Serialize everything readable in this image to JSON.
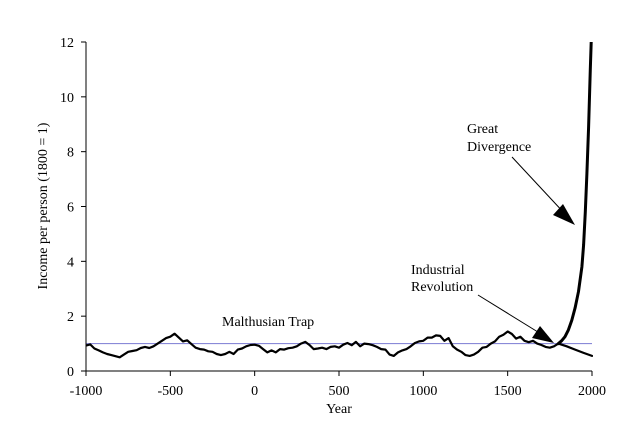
{
  "chart_data": {
    "type": "line",
    "title": "",
    "xlabel": "Year",
    "ylabel": "Income per person (1800 = 1)",
    "xlim": [
      -1000,
      2000
    ],
    "ylim": [
      0,
      12
    ],
    "x_ticks": [
      "-1000",
      "-500",
      "0",
      "500",
      "1000",
      "1500",
      "2000"
    ],
    "y_ticks": [
      "0",
      "2",
      "4",
      "6",
      "8",
      "10",
      "12"
    ],
    "grid": false,
    "legend": "none",
    "reference_line": {
      "y": 1,
      "color": "#8a8ad8"
    },
    "series": [
      {
        "color": "#000000",
        "x": [
          -1000,
          -975,
          -950,
          -925,
          -900,
          -875,
          -850,
          -825,
          -800,
          -775,
          -750,
          -725,
          -700,
          -675,
          -650,
          -625,
          -600,
          -575,
          -550,
          -525,
          -500,
          -475,
          -450,
          -425,
          -400,
          -375,
          -350,
          -325,
          -300,
          -275,
          -250,
          -225,
          -200,
          -175,
          -150,
          -125,
          -100,
          -75,
          -50,
          -25,
          0,
          25,
          50,
          75,
          100,
          125,
          150,
          175,
          200,
          225,
          250,
          275,
          300,
          325,
          350,
          375,
          400,
          425,
          450,
          475,
          500,
          525,
          550,
          575,
          600,
          625,
          650,
          675,
          700,
          725,
          750,
          775,
          800,
          825,
          850,
          875,
          900,
          925,
          950,
          975,
          1000,
          1025,
          1050,
          1075,
          1100,
          1125,
          1150,
          1175,
          1200,
          1225,
          1250,
          1275,
          1300,
          1325,
          1350,
          1375,
          1400,
          1425,
          1450,
          1475,
          1500,
          1525,
          1550,
          1575,
          1600,
          1625,
          1650,
          1675,
          1700,
          1725,
          1750,
          1775,
          1800
        ],
        "y": [
          0.93,
          0.97,
          0.82,
          0.75,
          0.68,
          0.62,
          0.58,
          0.54,
          0.5,
          0.6,
          0.7,
          0.73,
          0.76,
          0.84,
          0.88,
          0.84,
          0.9,
          1.0,
          1.1,
          1.2,
          1.25,
          1.36,
          1.22,
          1.08,
          1.12,
          0.98,
          0.85,
          0.8,
          0.78,
          0.72,
          0.7,
          0.62,
          0.58,
          0.62,
          0.7,
          0.62,
          0.78,
          0.82,
          0.9,
          0.95,
          0.96,
          0.92,
          0.8,
          0.68,
          0.75,
          0.68,
          0.8,
          0.78,
          0.83,
          0.85,
          0.9,
          1.0,
          1.06,
          0.95,
          0.8,
          0.82,
          0.85,
          0.8,
          0.88,
          0.9,
          0.85,
          0.96,
          1.02,
          0.94,
          1.06,
          0.9,
          1.0,
          0.98,
          0.94,
          0.88,
          0.8,
          0.78,
          0.6,
          0.55,
          0.68,
          0.75,
          0.8,
          0.9,
          1.02,
          1.08,
          1.1,
          1.22,
          1.22,
          1.3,
          1.28,
          1.1,
          1.2,
          0.9,
          0.78,
          0.7,
          0.58,
          0.55,
          0.6,
          0.7,
          0.85,
          0.88,
          1.0,
          1.08,
          1.25,
          1.32,
          1.44,
          1.35,
          1.18,
          1.25,
          1.1,
          1.05,
          1.1,
          1.0,
          0.95,
          0.88,
          0.85,
          0.9,
          1.0
        ]
      },
      {
        "color": "#000000",
        "x": [
          1800,
          1850,
          1900,
          1950,
          2000
        ],
        "y": [
          1.0,
          0.9,
          0.78,
          0.66,
          0.55
        ]
      },
      {
        "color": "#000000",
        "x": [
          1800,
          1820,
          1840,
          1860,
          1880,
          1900,
          1920,
          1940,
          1950,
          1960,
          1970,
          1980,
          1990,
          1995
        ],
        "y": [
          1.0,
          1.1,
          1.25,
          1.5,
          1.85,
          2.3,
          2.9,
          3.8,
          4.6,
          5.8,
          7.2,
          8.9,
          11.0,
          12.0
        ]
      }
    ],
    "annotations": [
      {
        "label": "Malthusian Trap"
      },
      {
        "label": "Industrial Revolution",
        "lines": [
          "Industrial",
          "Revolution"
        ]
      },
      {
        "label": "Great Divergence",
        "lines": [
          "Great",
          "Divergence"
        ]
      }
    ]
  }
}
